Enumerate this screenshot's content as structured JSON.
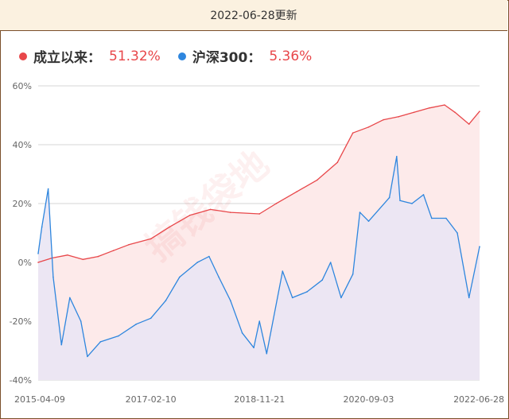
{
  "header": {
    "date": "2022-06-28更新"
  },
  "legend": [
    {
      "name": "成立以来：",
      "value": "51.32%",
      "color": "#e8474a"
    },
    {
      "name": "沪深300：",
      "value": "5.36%",
      "color": "#2e86de"
    }
  ],
  "watermark": "搞钱袋地",
  "chart_data": {
    "type": "line",
    "title": "",
    "xlabel": "",
    "ylabel": "",
    "y_ticks": [
      "60%",
      "40%",
      "20%",
      "0%",
      "-20%",
      "-40%"
    ],
    "ylim": [
      -40,
      60
    ],
    "x_ticks": [
      "2015-04-09",
      "2017-02-10",
      "2018-11-21",
      "2020-09-03",
      "2022-06-28"
    ],
    "grid": true,
    "series": [
      {
        "name": "成立以来",
        "color": "#e8474a",
        "fill": "#fdeaea",
        "x": [
          "2015-04-09",
          "2015-07-01",
          "2015-10-01",
          "2016-01-01",
          "2016-04-01",
          "2016-07-01",
          "2016-10-01",
          "2017-02-10",
          "2017-06-01",
          "2017-10-01",
          "2018-02-01",
          "2018-06-01",
          "2018-11-21",
          "2019-03-01",
          "2019-07-01",
          "2019-11-01",
          "2020-03-01",
          "2020-06-01",
          "2020-09-03",
          "2020-12-01",
          "2021-03-01",
          "2021-06-01",
          "2021-09-01",
          "2021-12-01",
          "2022-02-01",
          "2022-04-26",
          "2022-06-28"
        ],
        "values": [
          0,
          1.5,
          2.5,
          1,
          2,
          4,
          6,
          8,
          12,
          16,
          18,
          17,
          16.5,
          20,
          24,
          28,
          34,
          44,
          46,
          48.5,
          49.5,
          51,
          52.5,
          53.5,
          51,
          47,
          51.32
        ]
      },
      {
        "name": "沪深300",
        "color": "#2e86de",
        "fill": "#eae6f4",
        "x": [
          "2015-04-09",
          "2015-05-01",
          "2015-06-08",
          "2015-07-08",
          "2015-08-26",
          "2015-10-15",
          "2015-12-20",
          "2016-01-28",
          "2016-04-15",
          "2016-08-01",
          "2016-11-15",
          "2017-02-10",
          "2017-05-10",
          "2017-08-01",
          "2017-11-15",
          "2018-01-24",
          "2018-03-23",
          "2018-06-01",
          "2018-08-10",
          "2018-10-18",
          "2018-11-21",
          "2019-01-03",
          "2019-04-08",
          "2019-06-06",
          "2019-09-01",
          "2019-12-01",
          "2020-01-20",
          "2020-03-23",
          "2020-06-01",
          "2020-07-13",
          "2020-09-03",
          "2021-01-05",
          "2021-02-18",
          "2021-03-10",
          "2021-05-20",
          "2021-07-28",
          "2021-09-15",
          "2021-12-10",
          "2022-02-15",
          "2022-04-26",
          "2022-06-28"
        ],
        "values": [
          3,
          12,
          25,
          -5,
          -28,
          -12,
          -20,
          -32,
          -27,
          -25,
          -21,
          -19,
          -13,
          -5,
          0,
          2,
          -5,
          -13,
          -24,
          -29,
          -20,
          -31,
          -3,
          -12,
          -10,
          -6,
          0,
          -12,
          -4,
          17,
          14,
          22,
          36,
          21,
          20,
          23,
          15,
          15,
          10,
          -12,
          5.36
        ]
      }
    ]
  }
}
